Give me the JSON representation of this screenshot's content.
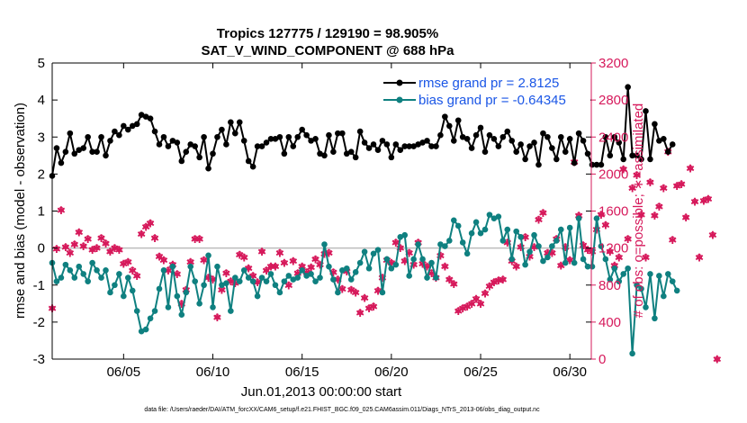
{
  "colors": {
    "rmse": "#000000",
    "bias": "#0f8080",
    "obs": "#d6195b",
    "zero": "#bdbdbd",
    "legend_text": "#1a56e6",
    "axis": "#000000"
  },
  "chart_data": {
    "type": "line",
    "title": "Tropics 127775 / 129190 = 98.905%",
    "subtitle": "SAT_V_WIND_COMPONENT @ 688 hPa",
    "xlabel": "Jun.01,2013 00:00:00 start",
    "ylabel": "rmse and bias (model - observation)",
    "y2label": "# of obs: o=possible; ∗=assimilated",
    "xlim": [
      1.0,
      31.2
    ],
    "ylim": [
      -3,
      5
    ],
    "y2lim": [
      0,
      3200
    ],
    "x_ticks": [
      {
        "value": 5,
        "label": "06/05"
      },
      {
        "value": 10,
        "label": "06/10"
      },
      {
        "value": 15,
        "label": "06/15"
      },
      {
        "value": 20,
        "label": "06/20"
      },
      {
        "value": 25,
        "label": "06/25"
      },
      {
        "value": 30,
        "label": "06/30"
      }
    ],
    "y_ticks": [
      -3,
      -2,
      -1,
      0,
      1,
      2,
      3,
      4,
      5
    ],
    "y2_ticks": [
      0,
      400,
      800,
      1200,
      1600,
      2000,
      2400,
      2800,
      3200
    ],
    "legend": [
      {
        "name": "rmse grand pr = 2.8125",
        "series": "rmse"
      },
      {
        "name": "bias grand pr = -0.64345",
        "series": "bias"
      }
    ],
    "footnote": "data file: /Users/raeder/DAI/ATM_forcXX/CAM6_setup/f.e21.FHIST_BGC.f09_025.CAM6assim.011/Diags_NTrS_2013-06/obs_diag_output.nc",
    "series": [
      {
        "name": "rmse",
        "x_start": 1.0,
        "x_step": 0.25,
        "values": [
          1.95,
          2.7,
          2.3,
          2.6,
          3.1,
          2.55,
          2.65,
          2.7,
          3.0,
          2.6,
          2.6,
          3.0,
          2.5,
          2.9,
          3.15,
          3.05,
          3.3,
          3.2,
          3.3,
          3.35,
          3.6,
          3.55,
          3.5,
          3.15,
          2.8,
          3.0,
          2.75,
          2.9,
          2.85,
          2.35,
          2.6,
          2.8,
          2.75,
          2.45,
          3.0,
          2.15,
          2.55,
          3.0,
          3.2,
          2.8,
          3.4,
          3.1,
          3.4,
          2.9,
          2.35,
          2.2,
          2.75,
          2.75,
          2.85,
          2.95,
          2.95,
          3.0,
          2.55,
          3.0,
          2.75,
          3.0,
          3.2,
          3.05,
          2.9,
          2.95,
          2.55,
          2.5,
          3.05,
          2.6,
          3.1,
          3.1,
          2.55,
          2.6,
          2.45,
          3.15,
          2.85,
          2.7,
          2.8,
          2.65,
          2.9,
          2.8,
          2.45,
          2.8,
          2.65,
          2.75,
          2.75,
          2.75,
          2.8,
          2.85,
          2.9,
          2.75,
          2.75,
          3.05,
          3.55,
          3.3,
          2.9,
          3.45,
          3.0,
          2.95,
          2.7,
          3.05,
          3.25,
          2.6,
          3.05,
          2.95,
          2.75,
          3.0,
          3.15,
          2.9,
          2.6,
          2.8,
          2.4,
          2.75,
          2.85,
          2.25,
          3.1,
          3.0,
          2.7,
          2.4,
          3.0,
          2.6,
          2.95,
          2.3,
          3.1,
          2.9,
          2.55,
          2.25,
          2.25,
          2.25,
          3.0,
          2.5,
          3.0,
          2.85,
          2.4,
          4.35,
          2.5,
          2.5,
          2.4,
          3.7,
          2.4,
          3.35,
          2.9,
          2.95,
          2.6,
          2.8
        ],
        "color": "#000000"
      },
      {
        "name": "bias",
        "x_start": 1.0,
        "x_step": 0.25,
        "values": [
          -0.4,
          -0.9,
          -0.8,
          -0.45,
          -0.6,
          -0.8,
          -0.5,
          -0.7,
          -0.9,
          -0.4,
          -0.6,
          -0.8,
          -0.6,
          -1.2,
          -1.0,
          -0.7,
          -1.3,
          -0.8,
          -1.15,
          -1.7,
          -2.25,
          -2.2,
          -1.9,
          -1.7,
          -1.1,
          -0.6,
          -1.6,
          -0.5,
          -1.3,
          -1.8,
          -1.2,
          -0.5,
          -0.9,
          -1.5,
          -1.0,
          -0.2,
          -1.6,
          -0.5,
          -1.0,
          -0.95,
          -1.7,
          -0.8,
          -0.9,
          -0.6,
          -0.8,
          -0.9,
          -1.3,
          -0.8,
          -0.9,
          -0.7,
          -1.0,
          -1.2,
          -0.9,
          -0.75,
          -0.85,
          -0.8,
          -0.6,
          -0.75,
          -0.7,
          -0.9,
          -0.8,
          0.1,
          -0.5,
          -0.85,
          -1.2,
          -0.6,
          -0.55,
          -0.85,
          -0.65,
          -0.4,
          -0.1,
          -0.55,
          -0.15,
          -0.05,
          -1.2,
          -0.3,
          -0.55,
          -0.45,
          0.3,
          0.35,
          -0.75,
          -0.3,
          0.1,
          -0.3,
          -0.8,
          -0.4,
          -0.8,
          0.1,
          0.05,
          0.2,
          0.75,
          0.6,
          0.15,
          -0.15,
          0.4,
          0.7,
          0.4,
          0.5,
          0.9,
          0.8,
          0.85,
          0.2,
          0.5,
          -0.3,
          0.45,
          0.3,
          -0.45,
          -0.1,
          0.35,
          0.05,
          -0.35,
          -0.25,
          0.05,
          0.2,
          0.5,
          -0.4,
          0.55,
          -0.4,
          0.8,
          -0.3,
          -0.5,
          -0.5,
          0.8,
          0.05,
          -0.3,
          -0.85,
          -0.55,
          -0.9,
          -0.7,
          -0.55,
          -2.85,
          -1.0,
          -1.1,
          -1.6,
          -0.7,
          -1.9,
          -0.75,
          -1.3,
          -0.7,
          -0.9,
          -1.15
        ],
        "color": "#0f8080"
      },
      {
        "name": "obs_assimilated",
        "axis": "right",
        "x_start": 1.0,
        "x_step": 0.25,
        "values": [
          550,
          1190,
          1610,
          1210,
          1150,
          1240,
          1370,
          1220,
          1300,
          1180,
          1200,
          1310,
          1250,
          1160,
          1200,
          1180,
          1030,
          1050,
          960,
          900,
          1350,
          1430,
          1470,
          1310,
          1110,
          1070,
          960,
          1020,
          920,
          600,
          750,
          1050,
          1300,
          1300,
          1070,
          880,
          860,
          450,
          750,
          930,
          840,
          820,
          1130,
          1100,
          980,
          900,
          830,
          1160,
          960,
          1000,
          1000,
          1150,
          1040,
          800,
          1060,
          930,
          1000,
          940,
          990,
          1080,
          1020,
          1140,
          1150,
          940,
          860,
          760,
          950,
          750,
          720,
          500,
          660,
          550,
          570,
          740,
          880,
          1070,
          1040,
          1260,
          1200,
          1060,
          1150,
          1020,
          1260,
          1030,
          1000,
          930,
          880,
          1120,
          1000,
          860,
          810,
          520,
          550,
          570,
          600,
          650,
          600,
          710,
          790,
          830,
          850,
          860,
          1260,
          1060,
          1000,
          1210,
          1320,
          1110,
          1210,
          1510,
          1580,
          1150,
          1150,
          1300,
          1010,
          1210,
          1070,
          2130,
          1550,
          1230,
          1180,
          1160,
          1400,
          1560,
          1450,
          1160,
          1010,
          1100,
          2050,
          1300,
          1850,
          1990,
          1560,
          1100,
          1910,
          1550,
          1650,
          1850,
          2240,
          1290,
          1870,
          1890,
          1530,
          2060,
          1700,
          1100,
          1710,
          1730,
          1340,
          0
        ],
        "color": "#d6195b"
      },
      {
        "name": "obs_possible",
        "axis": "right",
        "x_start": 1.0,
        "x_step": 0.25,
        "values": [
          550,
          1195,
          1615,
          1215,
          1155,
          1245,
          1375,
          1225,
          1305,
          1185,
          1205,
          1315,
          1255,
          1165,
          1205,
          1185,
          1035,
          1055,
          965,
          905,
          1355,
          1435,
          1475,
          1315,
          1115,
          1075,
          965,
          1025,
          925,
          605,
          755,
          1055,
          1305,
          1305,
          1075,
          885,
          865,
          455,
          755,
          935,
          845,
          825,
          1135,
          1105,
          985,
          905,
          835,
          1165,
          965,
          1005,
          1005,
          1155,
          1045,
          805,
          1065,
          935,
          1005,
          945,
          995,
          1085,
          1025,
          1145,
          1155,
          945,
          865,
          765,
          955,
          755,
          725,
          505,
          665,
          555,
          575,
          745,
          885,
          1075,
          1045,
          1265,
          1205,
          1065,
          1155,
          1025,
          1265,
          1035,
          1005,
          935,
          885,
          1125,
          1005,
          865,
          815,
          525,
          555,
          575,
          605,
          655,
          605,
          715,
          795,
          835,
          855,
          865,
          1265,
          1065,
          1005,
          1215,
          1325,
          1115,
          1215,
          1515,
          1585,
          1155,
          1155,
          1305,
          1015,
          1215,
          1075,
          2135,
          1555,
          1235,
          1185,
          1165,
          1405,
          1565,
          1455,
          1165,
          1015,
          1105,
          2055,
          1305,
          1855,
          1995,
          1565,
          1105,
          1915,
          1555,
          1655,
          1855,
          2245,
          1295,
          1875,
          1895,
          1535,
          2065,
          1705,
          1105,
          1715,
          1735,
          1345,
          0
        ],
        "color": "#d6195b"
      }
    ]
  }
}
